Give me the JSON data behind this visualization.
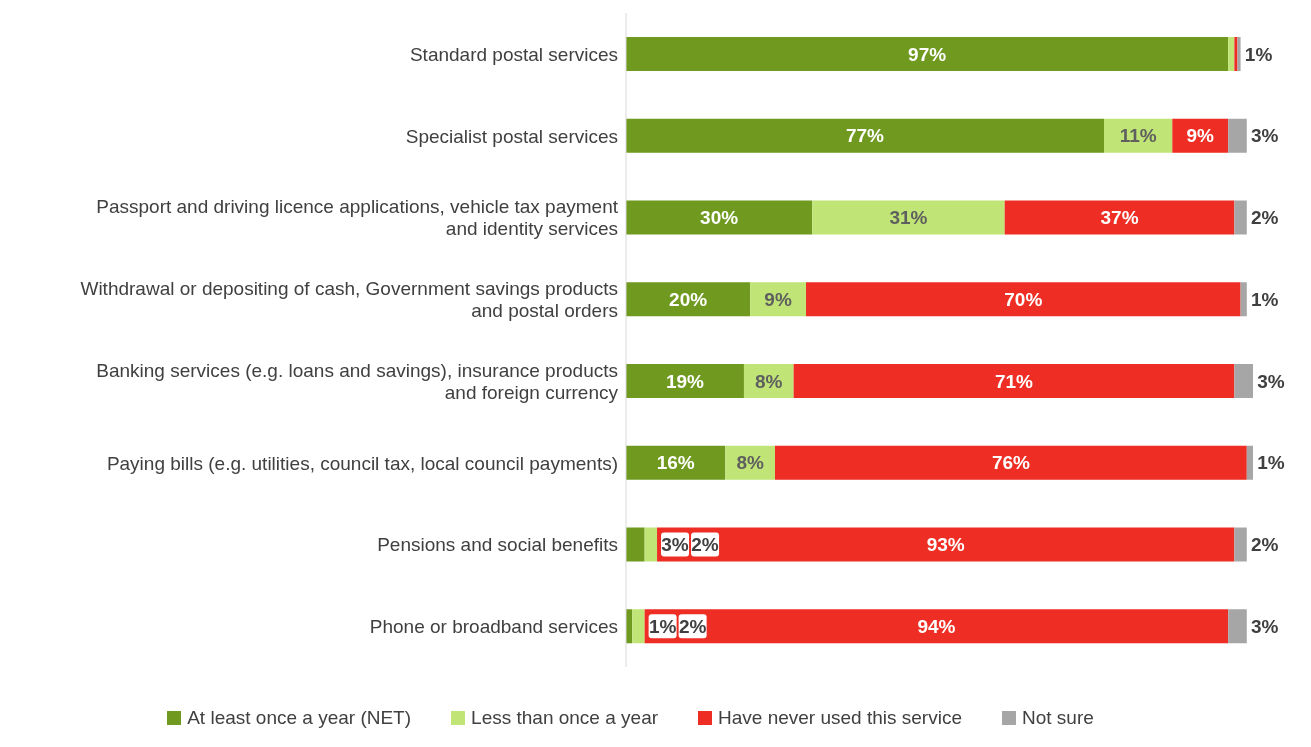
{
  "chart_data": {
    "type": "bar",
    "orientation": "horizontal",
    "stacked": true,
    "categories": [
      "Standard postal services",
      "Specialist postal services",
      "Passport and driving licence applications, vehicle tax payment and identity services",
      "Withdrawal or depositing of cash, Government savings products and postal orders",
      "Banking services (e.g. loans and savings), insurance products and foreign currency",
      "Paying bills (e.g. utilities, council tax, local council payments)",
      "Pensions and social benefits",
      "Phone or broadband services"
    ],
    "series": [
      {
        "name": "At least once a year (NET)",
        "color": "#6f9a1f",
        "values": [
          97,
          77,
          30,
          20,
          19,
          16,
          3,
          1
        ],
        "value_labels": [
          "97%",
          "77%",
          "30%",
          "20%",
          "19%",
          "16%",
          "3%",
          "1%"
        ]
      },
      {
        "name": "Less than once a year",
        "color": "#c0e576",
        "values": [
          1,
          11,
          31,
          9,
          8,
          8,
          2,
          2
        ],
        "value_labels": [
          "1%",
          "11%",
          "31%",
          "9%",
          "8%",
          "8%",
          "2%",
          "2%"
        ]
      },
      {
        "name": "Have never used this service",
        "color": "#ee2e24",
        "values": [
          0.5,
          9,
          37,
          70,
          71,
          76,
          93,
          94
        ],
        "value_labels": [
          null,
          "9%",
          "37%",
          "70%",
          "71%",
          "76%",
          "93%",
          "94%"
        ]
      },
      {
        "name": "Not sure",
        "color": "#a6a6a6",
        "values": [
          0.5,
          3,
          2,
          1,
          3,
          1,
          2,
          3
        ],
        "value_labels": [
          null,
          "3%",
          "2%",
          "1%",
          "3%",
          "1%",
          "2%",
          "3%"
        ]
      }
    ],
    "legend": "bottom"
  }
}
